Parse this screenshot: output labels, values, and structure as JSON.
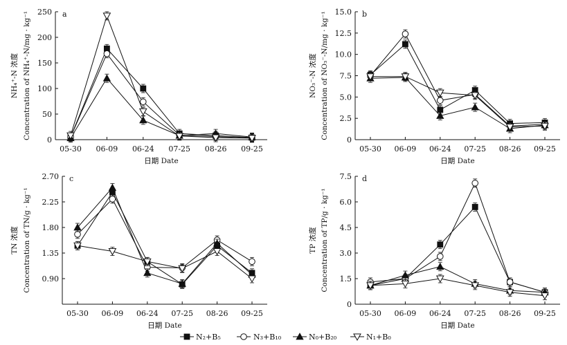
{
  "chart_data": [
    {
      "panel_label": "a",
      "type": "line",
      "categories": [
        "05-30",
        "06-09",
        "06-24",
        "07-25",
        "08-26",
        "09-25"
      ],
      "xlabel": "日期 Date",
      "ylabel_cn": "NH₄⁺-N 浓度",
      "ylabel_en": "Concentration of NH₄⁺-N/mg · kg⁻¹",
      "ylim": [
        0,
        250
      ],
      "yticks": [
        0,
        50,
        100,
        150,
        200,
        250
      ],
      "series": [
        {
          "name": "N₂+B₅",
          "values": [
            5,
            178,
            100,
            12,
            8,
            4
          ]
        },
        {
          "name": "N₃+B₁₀",
          "values": [
            5,
            168,
            74,
            9,
            6,
            3
          ]
        },
        {
          "name": "N₀+B₂₀",
          "values": [
            3,
            120,
            38,
            8,
            12,
            5
          ]
        },
        {
          "name": "N₁+B₀",
          "values": [
            8,
            242,
            55,
            7,
            4,
            3
          ]
        }
      ]
    },
    {
      "panel_label": "b",
      "type": "line",
      "categories": [
        "05-30",
        "06-09",
        "06-24",
        "07-25",
        "08-26",
        "09-25"
      ],
      "xlabel": "日期 Date",
      "ylabel_cn": "NO₃⁻-N 浓度",
      "ylabel_en": "Concentration of NO₃⁻-N/mg · kg⁻¹",
      "ylim": [
        0,
        15
      ],
      "yticks": [
        0,
        2.5,
        5.0,
        7.5,
        10.0,
        12.5,
        15.0
      ],
      "series": [
        {
          "name": "N₂+B₅",
          "values": [
            7.6,
            11.2,
            3.5,
            5.8,
            1.9,
            2.0
          ]
        },
        {
          "name": "N₃+B₁₀",
          "values": [
            7.5,
            12.4,
            4.6,
            5.3,
            1.6,
            1.8
          ]
        },
        {
          "name": "N₀+B₂₀",
          "values": [
            7.2,
            7.3,
            2.8,
            3.8,
            1.3,
            1.7
          ]
        },
        {
          "name": "N₁+B₀",
          "values": [
            7.4,
            7.4,
            5.5,
            5.2,
            1.5,
            1.6
          ]
        }
      ]
    },
    {
      "panel_label": "c",
      "type": "line",
      "categories": [
        "05-30",
        "06-09",
        "06-24",
        "07-25",
        "08-26",
        "09-25"
      ],
      "xlabel": "日期 Date",
      "ylabel_cn": "TN 浓度",
      "ylabel_en": "Concentration of TN/g · kg⁻¹",
      "ylim": [
        0.45,
        2.7
      ],
      "yticks": [
        0.9,
        1.35,
        1.8,
        2.25,
        2.7
      ],
      "series": [
        {
          "name": "N₂+B₅",
          "values": [
            1.48,
            2.42,
            1.2,
            0.8,
            1.48,
            1.0
          ]
        },
        {
          "name": "N₃+B₁₀",
          "values": [
            1.68,
            2.3,
            1.1,
            1.09,
            1.58,
            1.2
          ]
        },
        {
          "name": "N₀+B₂₀",
          "values": [
            1.8,
            2.5,
            1.0,
            0.81,
            1.52,
            0.97
          ]
        },
        {
          "name": "N₁+B₀",
          "values": [
            1.48,
            1.38,
            1.2,
            1.08,
            1.38,
            0.9
          ]
        }
      ]
    },
    {
      "panel_label": "d",
      "type": "line",
      "categories": [
        "05-30",
        "06-09",
        "06-24",
        "07-25",
        "08-26",
        "09-25"
      ],
      "xlabel": "日期 Date",
      "ylabel_cn": "TP 浓度",
      "ylabel_en": "Concentration of TP/g · kg⁻¹",
      "ylim": [
        0,
        7.5
      ],
      "yticks": [
        0,
        1.5,
        3.0,
        4.5,
        6.0,
        7.5
      ],
      "series": [
        {
          "name": "N₂+B₅",
          "values": [
            1.1,
            1.5,
            3.5,
            5.7,
            1.3,
            0.7
          ]
        },
        {
          "name": "N₃+B₁₀",
          "values": [
            1.3,
            1.5,
            2.8,
            7.1,
            1.3,
            0.7
          ]
        },
        {
          "name": "N₀+B₂₀",
          "values": [
            1.1,
            1.7,
            2.2,
            1.2,
            0.8,
            0.7
          ]
        },
        {
          "name": "N₁+B₀",
          "values": [
            1.1,
            1.2,
            1.5,
            1.1,
            0.7,
            0.5
          ]
        }
      ]
    }
  ],
  "legend": [
    {
      "label": "N₂+B₅",
      "marker": "square-filled"
    },
    {
      "label": "N₃+B₁₀",
      "marker": "circle-open"
    },
    {
      "label": "N₀+B₂₀",
      "marker": "triangle-filled"
    },
    {
      "label": "N₁+B₀",
      "marker": "triangle-down-open"
    }
  ]
}
